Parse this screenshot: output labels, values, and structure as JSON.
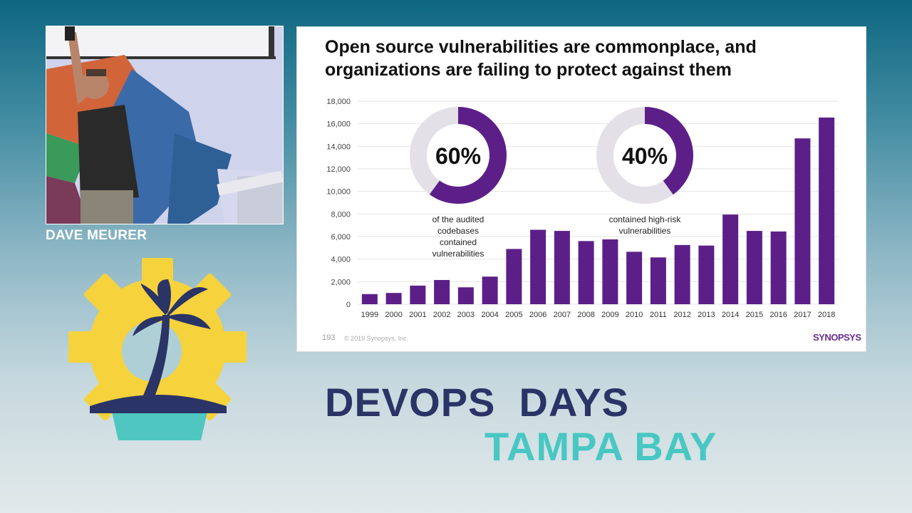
{
  "speaker": {
    "name": "DAVE MEURER"
  },
  "brand": {
    "line1": "DEVOPS  DAYS",
    "line2": "TAMPA BAY"
  },
  "slide": {
    "title_line1": "Open source vulnerabilities are commonplace, and",
    "title_line2": "organizations are failing to protect against them",
    "number": "193",
    "copyright": "© 2019 Synopsys, Inc.",
    "company": "SYNOPSYS"
  },
  "colors": {
    "bar": "#5c1f88",
    "donut_fill": "#5c1f88",
    "donut_track": "#e3e0e7",
    "brand_dark": "#2a3466",
    "brand_teal": "#48c7c3"
  },
  "chart_data": {
    "type": "bar",
    "categories": [
      "1999",
      "2000",
      "2001",
      "2002",
      "2003",
      "2004",
      "2005",
      "2006",
      "2007",
      "2008",
      "2009",
      "2010",
      "2011",
      "2012",
      "2013",
      "2014",
      "2015",
      "2016",
      "2017",
      "2018"
    ],
    "values": [
      900,
      1000,
      1650,
      2150,
      1500,
      2450,
      4900,
      6600,
      6500,
      5600,
      5750,
      4650,
      4150,
      5250,
      5200,
      7950,
      6500,
      6450,
      14700,
      16550
    ],
    "ylim": [
      0,
      18000
    ],
    "yticks": [
      0,
      2000,
      4000,
      6000,
      8000,
      10000,
      12000,
      14000,
      16000,
      18000
    ],
    "ytick_labels": [
      "0",
      "2,000",
      "4,000",
      "6,000",
      "8,000",
      "10,000",
      "12,000",
      "14,000",
      "16,000",
      "18,000"
    ],
    "grid": true,
    "xlabel": "",
    "ylabel": "",
    "annotations": [
      {
        "value": 60,
        "label": "60%",
        "caption": [
          "of the audited",
          "codebases",
          "contained",
          "vulnerabilities"
        ]
      },
      {
        "value": 40,
        "label": "40%",
        "caption": [
          "contained high-risk",
          "vulnerabilities"
        ]
      }
    ]
  }
}
